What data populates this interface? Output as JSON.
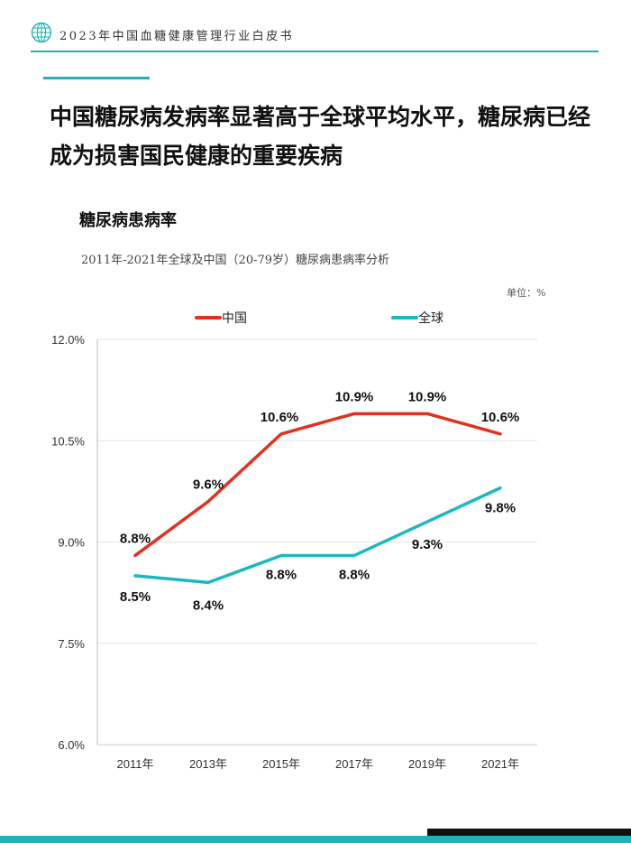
{
  "header": {
    "title": "2023年中国血糖健康管理行业白皮书",
    "logo_icon": "globe-icon"
  },
  "heading": "中国糖尿病发病率显著高于全球平均水平，糖尿病已经成为损害国民健康的重要疾病",
  "section_title": "糖尿病患病率",
  "colors": {
    "accent": "#20b2b6",
    "china": "#e0321e",
    "global": "#1ab8bf"
  },
  "chart_data": {
    "type": "line",
    "title": "2011年-2021年全球及中国（20-79岁）糖尿病患病率分析",
    "unit": "单位：%",
    "categories": [
      "2011年",
      "2013年",
      "2015年",
      "2017年",
      "2019年",
      "2021年"
    ],
    "series": [
      {
        "name": "中国",
        "color": "#e0321e",
        "values": [
          8.8,
          9.6,
          10.6,
          10.9,
          10.9,
          10.6
        ],
        "labels": [
          "8.8%",
          "9.6%",
          "10.6%",
          "10.9%",
          "10.9%",
          "10.6%"
        ]
      },
      {
        "name": "全球",
        "color": "#1ab8bf",
        "values": [
          8.5,
          8.4,
          8.8,
          8.8,
          9.3,
          9.8
        ],
        "labels": [
          "8.5%",
          "8.4%",
          "8.8%",
          "8.8%",
          "9.3%",
          "9.8%"
        ]
      }
    ],
    "yticks": [
      6.0,
      7.5,
      9.0,
      10.5,
      12.0
    ],
    "ytick_labels": [
      "6.0%",
      "7.5%",
      "9.0%",
      "10.5%",
      "12.0%"
    ],
    "ylim": [
      6.0,
      12.0
    ],
    "grid": true,
    "legend": "top"
  }
}
